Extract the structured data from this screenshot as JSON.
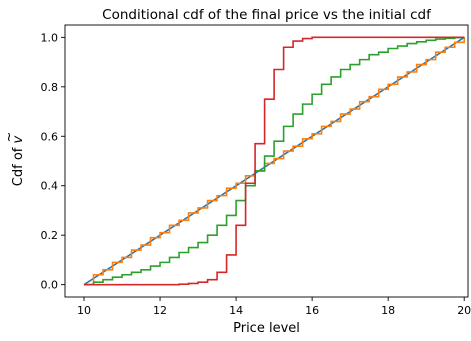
{
  "chart_data": {
    "type": "line",
    "title": "Conditional cdf of the final price vs the initial cdf",
    "xlabel": "Price level",
    "ylabel_prefix": "Cdf of ",
    "ylabel_var": "v",
    "ylabel_accent": "~",
    "xlim": [
      9.5,
      20.1
    ],
    "ylim": [
      -0.05,
      1.05
    ],
    "xticks": [
      10,
      12,
      14,
      16,
      18,
      20
    ],
    "xtick_labels": [
      "10",
      "12",
      "14",
      "16",
      "18",
      "20"
    ],
    "yticks": [
      0.0,
      0.2,
      0.4,
      0.6,
      0.8,
      1.0
    ],
    "ytick_labels": [
      "0.0",
      "0.2",
      "0.4",
      "0.6",
      "0.8",
      "1.0"
    ],
    "grid": false,
    "series": [
      {
        "color": "#1f77b4",
        "step": false,
        "x": [
          10,
          20
        ],
        "y": [
          0,
          1
        ]
      },
      {
        "color": "#ff7f0e",
        "step": true,
        "x": [
          10.0,
          10.25,
          10.5,
          10.75,
          11.0,
          11.25,
          11.5,
          11.75,
          12.0,
          12.25,
          12.5,
          12.75,
          13.0,
          13.25,
          13.5,
          13.75,
          14.0,
          14.25,
          14.5,
          14.75,
          15.0,
          15.25,
          15.5,
          15.75,
          16.0,
          16.25,
          16.5,
          16.75,
          17.0,
          17.25,
          17.5,
          17.75,
          18.0,
          18.25,
          18.5,
          18.75,
          19.0,
          19.25,
          19.5,
          19.75,
          20.0
        ],
        "y": [
          0.0,
          0.04,
          0.06,
          0.09,
          0.11,
          0.14,
          0.16,
          0.19,
          0.21,
          0.24,
          0.26,
          0.29,
          0.31,
          0.34,
          0.36,
          0.39,
          0.41,
          0.44,
          0.46,
          0.49,
          0.51,
          0.54,
          0.56,
          0.59,
          0.61,
          0.64,
          0.66,
          0.69,
          0.71,
          0.74,
          0.76,
          0.79,
          0.81,
          0.84,
          0.86,
          0.89,
          0.91,
          0.94,
          0.96,
          0.98,
          1.0
        ]
      },
      {
        "color": "#2ca02c",
        "step": true,
        "x": [
          10.0,
          10.25,
          10.5,
          10.75,
          11.0,
          11.25,
          11.5,
          11.75,
          12.0,
          12.25,
          12.5,
          12.75,
          13.0,
          13.25,
          13.5,
          13.75,
          14.0,
          14.25,
          14.5,
          14.75,
          15.0,
          15.25,
          15.5,
          15.75,
          16.0,
          16.25,
          16.5,
          16.75,
          17.0,
          17.25,
          17.5,
          17.75,
          18.0,
          18.25,
          18.5,
          18.75,
          19.0,
          19.25,
          19.5,
          19.75,
          20.0
        ],
        "y": [
          0.0,
          0.01,
          0.02,
          0.03,
          0.04,
          0.05,
          0.06,
          0.075,
          0.09,
          0.11,
          0.13,
          0.15,
          0.17,
          0.2,
          0.24,
          0.28,
          0.34,
          0.4,
          0.46,
          0.52,
          0.58,
          0.64,
          0.69,
          0.73,
          0.77,
          0.81,
          0.84,
          0.87,
          0.89,
          0.91,
          0.93,
          0.94,
          0.955,
          0.965,
          0.975,
          0.982,
          0.988,
          0.993,
          0.996,
          0.999,
          1.0
        ]
      },
      {
        "color": "#d62728",
        "step": true,
        "x": [
          10.0,
          12.5,
          12.75,
          13.0,
          13.25,
          13.5,
          13.75,
          14.0,
          14.25,
          14.5,
          14.75,
          15.0,
          15.25,
          15.5,
          15.75,
          16.0,
          16.25,
          16.5,
          16.75,
          17.0,
          20.0
        ],
        "y": [
          0.0,
          0.002,
          0.005,
          0.01,
          0.02,
          0.05,
          0.12,
          0.24,
          0.41,
          0.57,
          0.75,
          0.87,
          0.96,
          0.985,
          0.995,
          1.0,
          1.0,
          1.0,
          1.0,
          1.0,
          1.0
        ]
      }
    ]
  }
}
